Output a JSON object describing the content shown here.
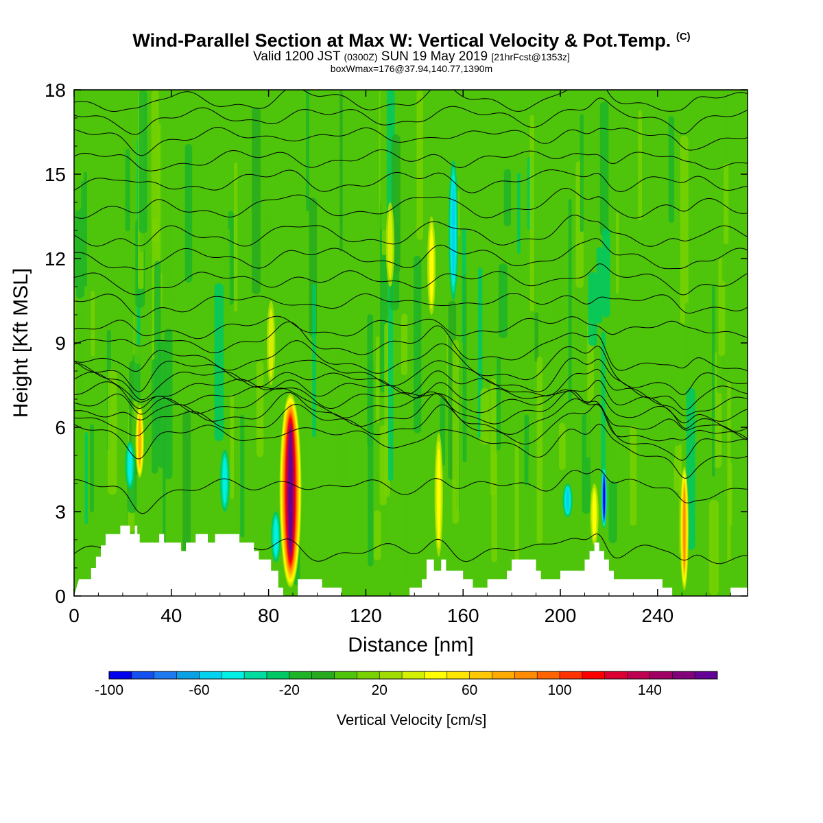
{
  "header": {
    "title_main": "Wind-Parallel Section at Max W: Vertical Velocity & Pot.Temp.",
    "title_mark": "(C)",
    "valid_prefix": "Valid 1200 JST",
    "valid_utc": "(0300Z)",
    "valid_date": "SUN 19 May 2019",
    "forecast": "[21hrFcst@1353z]",
    "boxwmax": "boxWmax=176@37.94,140.77,1390m"
  },
  "colors": {
    "background_green": "#4ec40a",
    "plot_border": "#000000",
    "contour": "#000000",
    "terrain": "#ffffff"
  },
  "chart_data": {
    "type": "heatmap",
    "xlabel": "Distance [nm]",
    "ylabel": "Height [Kft MSL]",
    "xlim": [
      0,
      277
    ],
    "ylim": [
      0,
      18
    ],
    "x_ticks": [
      "0",
      "40",
      "80",
      "120",
      "160",
      "200",
      "240"
    ],
    "y_ticks": [
      "0",
      "3",
      "6",
      "9",
      "12",
      "15",
      "18"
    ],
    "colorbar": {
      "label": "Vertical Velocity [cm/s]",
      "range": [
        -100,
        170
      ],
      "step": 10,
      "tick_labels": [
        "-100",
        "-60",
        "-20",
        "20",
        "60",
        "100",
        "140"
      ],
      "colors": [
        "#0000ee",
        "#1450f0",
        "#1e78f0",
        "#0aa0e6",
        "#00d2f0",
        "#00f0e6",
        "#00dca0",
        "#00c864",
        "#1eb428",
        "#28aa1e",
        "#4ec40a",
        "#78d200",
        "#a0dc00",
        "#d2f000",
        "#ffff00",
        "#ffe600",
        "#ffc800",
        "#ffaa00",
        "#ff8c00",
        "#ff6400",
        "#ff3200",
        "#ff0000",
        "#dc0032",
        "#be0050",
        "#a00064",
        "#820078",
        "#640096"
      ]
    },
    "wmax_cm_s": 176,
    "terrain_kft": [
      [
        0,
        0
      ],
      [
        2,
        0.6
      ],
      [
        7,
        0.6
      ],
      [
        7,
        1.0
      ],
      [
        9,
        1.0
      ],
      [
        9,
        1.4
      ],
      [
        11,
        1.4
      ],
      [
        11,
        1.8
      ],
      [
        13,
        1.8
      ],
      [
        13,
        2.2
      ],
      [
        19,
        2.2
      ],
      [
        19,
        2.5
      ],
      [
        23,
        2.5
      ],
      [
        23,
        2.2
      ],
      [
        25,
        2.2
      ],
      [
        25,
        2.5
      ],
      [
        26,
        2.5
      ],
      [
        26,
        2.2
      ],
      [
        27,
        2.2
      ],
      [
        27,
        1.9
      ],
      [
        35,
        1.9
      ],
      [
        35,
        2.2
      ],
      [
        37,
        2.2
      ],
      [
        37,
        1.9
      ],
      [
        44,
        1.9
      ],
      [
        44,
        1.6
      ],
      [
        46,
        1.6
      ],
      [
        46,
        1.9
      ],
      [
        50,
        1.9
      ],
      [
        50,
        2.2
      ],
      [
        55,
        2.2
      ],
      [
        55,
        1.9
      ],
      [
        58,
        1.9
      ],
      [
        58,
        2.2
      ],
      [
        63,
        2.2
      ],
      [
        63,
        2.2
      ],
      [
        68,
        2.2
      ],
      [
        68,
        1.9
      ],
      [
        74,
        1.9
      ],
      [
        74,
        1.6
      ],
      [
        76,
        1.6
      ],
      [
        76,
        1.3
      ],
      [
        81,
        1.3
      ],
      [
        81,
        0.9
      ],
      [
        84,
        0.9
      ],
      [
        84,
        0.3
      ],
      [
        86,
        0.3
      ],
      [
        86,
        0
      ],
      [
        92,
        0
      ],
      [
        92,
        0.6
      ],
      [
        102,
        0.6
      ],
      [
        102,
        0.3
      ],
      [
        110,
        0.3
      ],
      [
        110,
        0
      ],
      [
        138,
        0
      ],
      [
        138,
        0.3
      ],
      [
        143,
        0.3
      ],
      [
        143,
        0.6
      ],
      [
        145,
        0.6
      ],
      [
        145,
        1.3
      ],
      [
        148,
        1.3
      ],
      [
        148,
        0.9
      ],
      [
        151,
        0.9
      ],
      [
        151,
        1.3
      ],
      [
        153,
        1.3
      ],
      [
        153,
        0.9
      ],
      [
        160,
        0.9
      ],
      [
        160,
        0.6
      ],
      [
        164,
        0.6
      ],
      [
        164,
        0.3
      ],
      [
        170,
        0.3
      ],
      [
        170,
        0.6
      ],
      [
        178,
        0.6
      ],
      [
        178,
        0.9
      ],
      [
        180,
        0.9
      ],
      [
        180,
        1.3
      ],
      [
        190,
        1.3
      ],
      [
        190,
        0.9
      ],
      [
        192,
        0.9
      ],
      [
        192,
        0.6
      ],
      [
        200,
        0.6
      ],
      [
        200,
        0.9
      ],
      [
        210,
        0.9
      ],
      [
        210,
        1.3
      ],
      [
        212,
        1.3
      ],
      [
        212,
        1.6
      ],
      [
        214,
        1.6
      ],
      [
        214,
        1.9
      ],
      [
        216,
        1.9
      ],
      [
        216,
        1.6
      ],
      [
        218,
        1.6
      ],
      [
        218,
        1.3
      ],
      [
        220,
        1.3
      ],
      [
        220,
        0.9
      ],
      [
        222,
        0.9
      ],
      [
        222,
        0.6
      ],
      [
        242,
        0.6
      ],
      [
        242,
        0.3
      ],
      [
        246,
        0.3
      ],
      [
        246,
        0
      ],
      [
        270,
        0
      ],
      [
        270,
        0.3
      ],
      [
        277,
        0.3
      ]
    ],
    "updraft_cores": [
      {
        "x": 89,
        "y_bottom": 0.3,
        "y_top": 7.2,
        "w_cm_s": 170
      },
      {
        "x": 27,
        "y_bottom": 4.2,
        "y_top": 6.8,
        "w_cm_s": 70
      },
      {
        "x": 251,
        "y_bottom": 0.2,
        "y_top": 4.6,
        "w_cm_s": 80
      },
      {
        "x": 150,
        "y_bottom": 1.4,
        "y_top": 5.8,
        "w_cm_s": 40
      },
      {
        "x": 214,
        "y_bottom": 1.8,
        "y_top": 4.0,
        "w_cm_s": 40
      },
      {
        "x": 130,
        "y_bottom": 11.0,
        "y_top": 14.0,
        "w_cm_s": 30
      },
      {
        "x": 147,
        "y_bottom": 10.0,
        "y_top": 13.5,
        "w_cm_s": 40
      },
      {
        "x": 81,
        "y_bottom": 7.5,
        "y_top": 10.5,
        "w_cm_s": 30
      }
    ],
    "downdraft_cores": [
      {
        "x": 218,
        "y_bottom": 2.4,
        "y_top": 4.6,
        "w_cm_s": -100
      },
      {
        "x": 156,
        "y_bottom": 10.5,
        "y_top": 15.5,
        "w_cm_s": -50
      },
      {
        "x": 203,
        "y_bottom": 2.8,
        "y_top": 4.0,
        "w_cm_s": -50
      },
      {
        "x": 62,
        "y_bottom": 3.0,
        "y_top": 5.2,
        "w_cm_s": -40
      },
      {
        "x": 23,
        "y_bottom": 3.8,
        "y_top": 5.5,
        "w_cm_s": -40
      },
      {
        "x": 83,
        "y_bottom": 1.2,
        "y_top": 3.0,
        "w_cm_s": -40
      }
    ],
    "theta_contour_levels_kft": [
      1.5,
      3.8,
      5.6,
      6.1,
      6.4,
      6.7,
      7.0,
      7.3,
      7.6,
      7.9,
      8.3,
      8.9,
      9.5,
      10.4,
      11.2,
      12.0,
      12.8,
      13.8,
      14.7,
      15.5,
      16.3,
      17.0,
      17.6
    ]
  }
}
